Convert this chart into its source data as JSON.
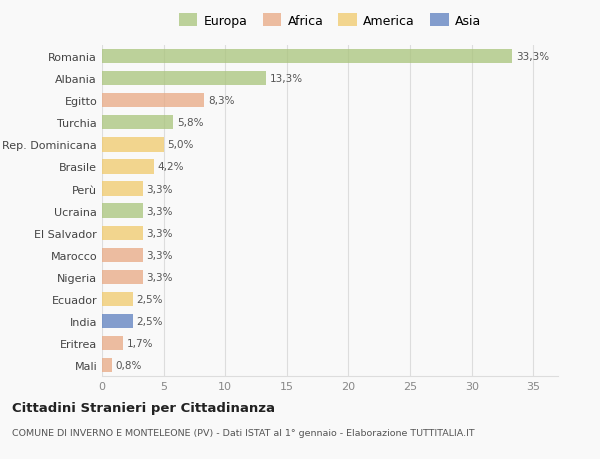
{
  "categories": [
    "Romania",
    "Albania",
    "Egitto",
    "Turchia",
    "Rep. Dominicana",
    "Brasile",
    "Perù",
    "Ucraina",
    "El Salvador",
    "Marocco",
    "Nigeria",
    "Ecuador",
    "India",
    "Eritrea",
    "Mali"
  ],
  "values": [
    33.3,
    13.3,
    8.3,
    5.8,
    5.0,
    4.2,
    3.3,
    3.3,
    3.3,
    3.3,
    3.3,
    2.5,
    2.5,
    1.7,
    0.8
  ],
  "labels": [
    "33,3%",
    "13,3%",
    "8,3%",
    "5,8%",
    "5,0%",
    "4,2%",
    "3,3%",
    "3,3%",
    "3,3%",
    "3,3%",
    "3,3%",
    "2,5%",
    "2,5%",
    "1,7%",
    "0,8%"
  ],
  "colors": [
    "#a8c47a",
    "#a8c47a",
    "#e8a882",
    "#a8c47a",
    "#f0c96a",
    "#f0c96a",
    "#f0c96a",
    "#a8c47a",
    "#f0c96a",
    "#e8a882",
    "#e8a882",
    "#f0c96a",
    "#5b7fbf",
    "#e8a882",
    "#e8a882"
  ],
  "legend_labels": [
    "Europa",
    "Africa",
    "America",
    "Asia"
  ],
  "legend_colors": [
    "#a8c47a",
    "#e8a882",
    "#f0c96a",
    "#5b7fbf"
  ],
  "title": "Cittadini Stranieri per Cittadinanza",
  "subtitle": "COMUNE DI INVERNO E MONTELEONE (PV) - Dati ISTAT al 1° gennaio - Elaborazione TUTTITALIA.IT",
  "xlim": [
    0,
    37
  ],
  "xticks": [
    0,
    5,
    10,
    15,
    20,
    25,
    30,
    35
  ],
  "background_color": "#f9f9f9",
  "bar_alpha": 0.75,
  "bar_height": 0.65
}
